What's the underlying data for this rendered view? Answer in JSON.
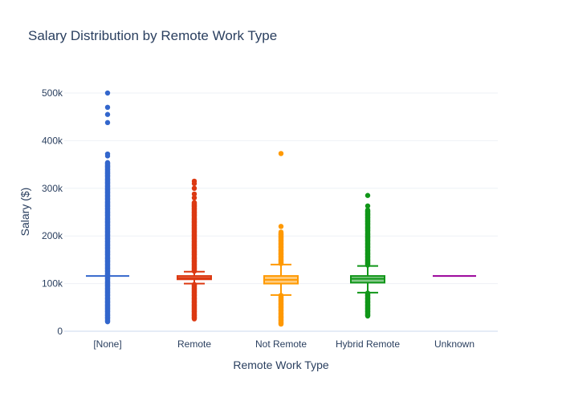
{
  "chart_data": {
    "type": "box",
    "title": "Salary Distribution by Remote Work Type",
    "xlabel": "Remote Work Type",
    "ylabel": "Salary ($)",
    "ylim": [
      0,
      520000
    ],
    "yticks": [
      0,
      100000,
      200000,
      300000,
      400000,
      500000
    ],
    "ytick_labels": [
      "0",
      "100k",
      "200k",
      "300k",
      "400k",
      "500k"
    ],
    "grid": true,
    "legend": "none",
    "categories": [
      "[None]",
      "Remote",
      "Not Remote",
      "Hybrid Remote",
      "Unknown"
    ],
    "series": [
      {
        "category": "[None]",
        "color": "#3366cc",
        "q1": 116000,
        "median": 116000,
        "q3": 116000,
        "lower_fence": 116000,
        "upper_fence": 116000,
        "outlier_range_low": [
          20000,
          115000
        ],
        "outlier_range_high": [
          117000,
          355000
        ],
        "outliers_discrete": [
          500000,
          470000,
          455000,
          438000,
          372000,
          368000
        ]
      },
      {
        "category": "Remote",
        "color": "#dc3912",
        "q1": 109000,
        "median": 112000,
        "q3": 116000,
        "lower_fence": 100000,
        "upper_fence": 125000,
        "outlier_range_low": [
          26000,
          99000
        ],
        "outlier_range_high": [
          126000,
          270000
        ],
        "outliers_discrete": [
          315000,
          310000,
          300000,
          288000,
          280000
        ]
      },
      {
        "category": "Not Remote",
        "color": "#ff9900",
        "q1": 100000,
        "median": 108000,
        "q3": 116000,
        "lower_fence": 76000,
        "upper_fence": 140000,
        "outlier_range_low": [
          15000,
          75000
        ],
        "outlier_range_high": [
          142000,
          208000
        ],
        "outliers_discrete": [
          373000,
          220000
        ]
      },
      {
        "category": "Hybrid Remote",
        "color": "#109618",
        "q1": 102000,
        "median": 110000,
        "q3": 116000,
        "lower_fence": 81000,
        "upper_fence": 137000,
        "outlier_range_low": [
          32000,
          80000
        ],
        "outlier_range_high": [
          139000,
          255000
        ],
        "outliers_discrete": [
          285000,
          263000
        ]
      },
      {
        "category": "Unknown",
        "color": "#990099",
        "q1": 116000,
        "median": 116000,
        "q3": 116000,
        "lower_fence": 116000,
        "upper_fence": 116000,
        "outlier_range_low": null,
        "outlier_range_high": null,
        "outliers_discrete": []
      }
    ]
  }
}
